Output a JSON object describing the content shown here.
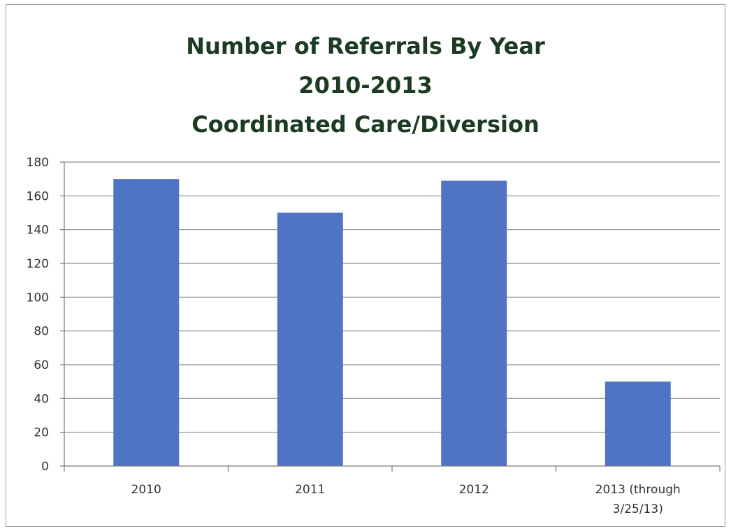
{
  "chart_data": {
    "type": "bar",
    "title": [
      "Number of Referrals By Year",
      "2010-2013",
      "Coordinated Care/Diversion"
    ],
    "categories": [
      [
        "2010"
      ],
      [
        "2011"
      ],
      [
        "2012"
      ],
      [
        "2013 (through",
        "3/25/13)"
      ]
    ],
    "values": [
      170,
      150,
      169,
      50
    ],
    "yticks": [
      0,
      20,
      40,
      60,
      80,
      100,
      120,
      140,
      160,
      180
    ],
    "ylim": [
      0,
      180
    ],
    "grid": true,
    "legend": "none",
    "bar_color": "#4f74c6",
    "grid_color": "#8c8c8c",
    "axis_color": "#7a7a7a"
  }
}
